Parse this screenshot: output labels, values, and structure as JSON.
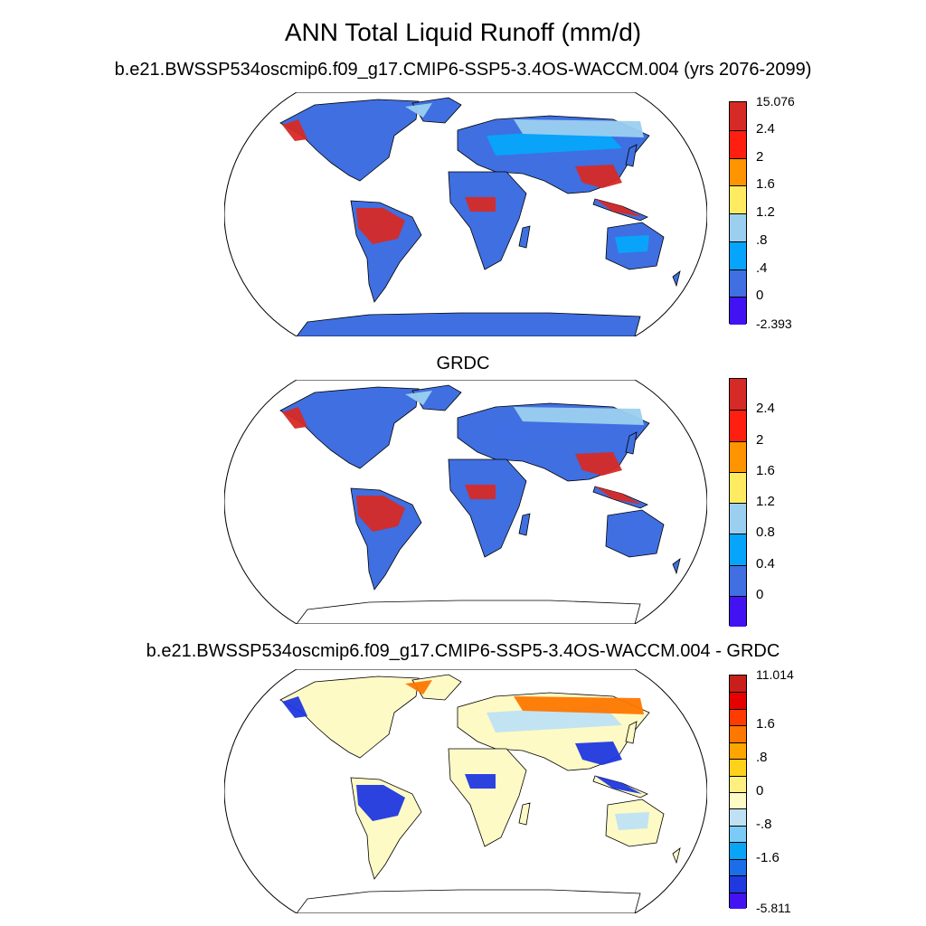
{
  "title": "ANN Total Liquid Runoff (mm/d)",
  "panels": [
    {
      "title": "b.e21.BWSSP534oscmip6.f09_g17.CMIP6-SSP5-3.4OS-WACCM.004 (yrs 2076-2099)",
      "colorbar": {
        "colors": [
          "#d62a26",
          "#fe1f10",
          "#fe9400",
          "#feeb62",
          "#9bcfef",
          "#06a5fb",
          "#3f6fe1",
          "#4212f3"
        ],
        "tick_labels": [
          "15.076",
          "2.4",
          "2",
          "1.6",
          "1.2",
          ".8",
          ".4",
          "0",
          "-2.393"
        ]
      },
      "fills": {
        "land": "#3f6fe1",
        "wet": "#d62a26",
        "mid": "#06a5fb",
        "high": "#9bcfef",
        "antarctica": "#3f6fe1"
      }
    },
    {
      "title": "GRDC",
      "colorbar": {
        "colors": [
          "#d62a26",
          "#fe1f10",
          "#fe9400",
          "#feeb62",
          "#9bcfef",
          "#06a5fb",
          "#3f6fe1",
          "#4212f3"
        ],
        "tick_labels": [
          "",
          "2.4",
          "2",
          "1.6",
          "1.2",
          "0.8",
          "0.4",
          "0",
          ""
        ]
      },
      "fills": {
        "land": "#3f6fe1",
        "wet": "#d62a26",
        "mid": "#3f6fe1",
        "high": "#9bcfef",
        "antarctica": "none"
      }
    },
    {
      "title": "b.e21.BWSSP534oscmip6.f09_g17.CMIP6-SSP5-3.4OS-WACCM.004 - GRDC",
      "colorbar": {
        "colors": [
          "#c91f1b",
          "#e60000",
          "#fe3c00",
          "#fe7700",
          "#fea500",
          "#fed21b",
          "#feef80",
          "#fefac6",
          "#bfe1f3",
          "#7acbf5",
          "#0aa4f7",
          "#1a6ee8",
          "#2038e0",
          "#4212f3"
        ],
        "tick_labels": [
          "11.014",
          "",
          "",
          "1.6",
          "",
          ".8",
          "",
          "0",
          "",
          "-.8",
          "",
          "-1.6",
          "",
          "",
          "-5.811"
        ]
      },
      "fills": {
        "land": "#fefac6",
        "wet": "#2038e0",
        "mid": "#bfe1f3",
        "high": "#fe7700",
        "antarctica": "none"
      }
    }
  ]
}
